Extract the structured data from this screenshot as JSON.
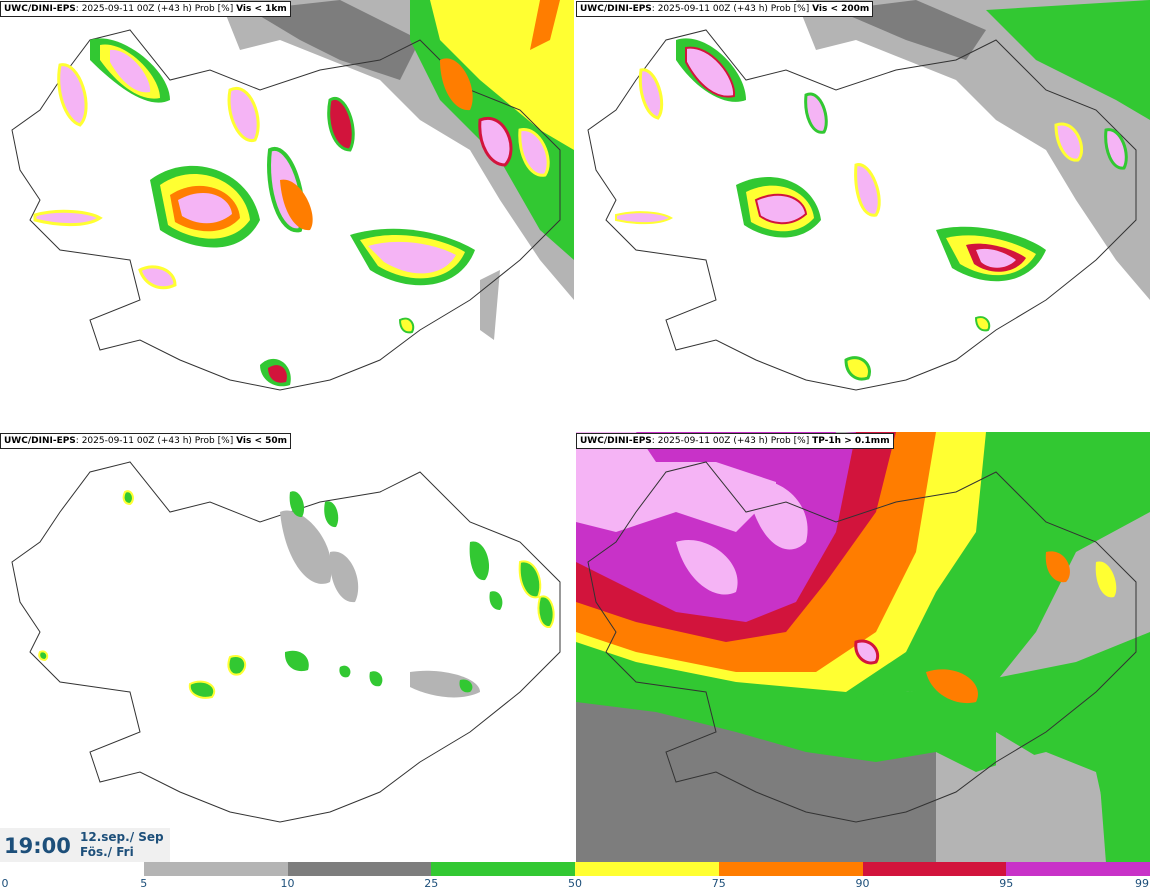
{
  "panels": [
    {
      "model": "UWC/DINI-EPS",
      "run_info": ": 2025-09-11 00Z (+43 h) Prob [%]",
      "threshold": "Vis < 1km"
    },
    {
      "model": "UWC/DINI-EPS",
      "run_info": ": 2025-09-11 00Z (+43 h) Prob [%]",
      "threshold": "Vis < 200m"
    },
    {
      "model": "UWC/DINI-EPS",
      "run_info": ": 2025-09-11 00Z (+43 h) Prob [%]",
      "threshold": "Vis < 50m"
    },
    {
      "model": "UWC/DINI-EPS",
      "run_info": ": 2025-09-11 00Z (+43 h) Prob [%]",
      "threshold": "TP-1h > 0.1mm"
    }
  ],
  "valid_time": {
    "time": "19:00",
    "date_line1": "12.sep./ Sep",
    "date_line2": "Fös./ Fri"
  },
  "colorbar": {
    "labels": [
      "0",
      "5",
      "10",
      "25",
      "50",
      "75",
      "90",
      "95",
      "99"
    ],
    "colors": [
      "#ffffff",
      "#b4b4b4",
      "#7d7d7d",
      "#32c832",
      "#ffff32",
      "#ff7d00",
      "#d2143c",
      "#c832c8",
      "#f5b4f5"
    ]
  }
}
